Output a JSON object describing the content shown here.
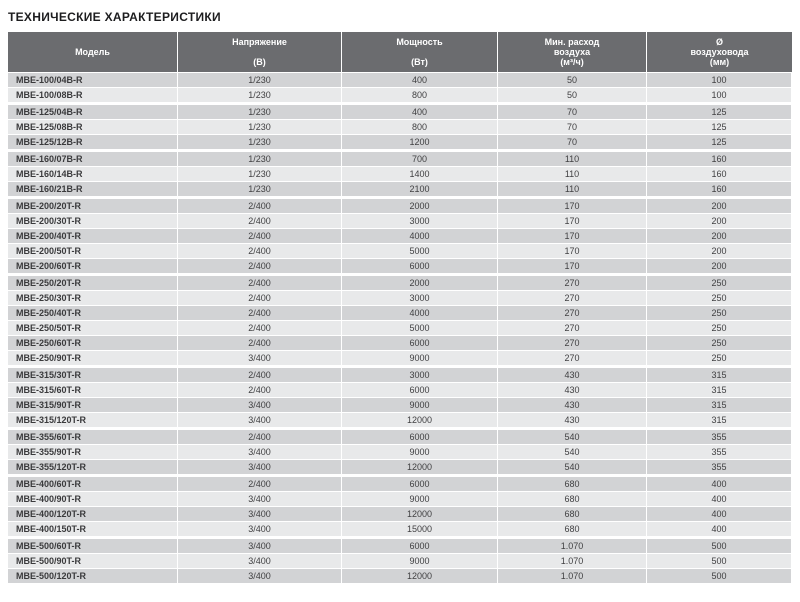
{
  "page_title": "ТЕХНИЧЕСКИЕ ХАРАКТЕРИСТИКИ",
  "colors": {
    "header_bg": "#6b6c6f",
    "header_text": "#ffffff",
    "row_dark": "#d2d3d5",
    "row_light": "#e8e9ea",
    "text": "#404042"
  },
  "table": {
    "columns": [
      {
        "title": "Модель",
        "unit": ""
      },
      {
        "title": "Напряжение",
        "unit": "(В)"
      },
      {
        "title": "Мощность",
        "unit": "(Вт)"
      },
      {
        "title": "Мин. расход\nвоздуха",
        "unit": "(м³/ч)"
      },
      {
        "title": "Ø\nвоздуховода",
        "unit": "(мм)"
      }
    ],
    "groups": [
      {
        "rows": [
          [
            "MBE-100/04B-R",
            "1/230",
            "400",
            "50",
            "100"
          ],
          [
            "MBE-100/08B-R",
            "1/230",
            "800",
            "50",
            "100"
          ]
        ]
      },
      {
        "rows": [
          [
            "MBE-125/04B-R",
            "1/230",
            "400",
            "70",
            "125"
          ],
          [
            "MBE-125/08B-R",
            "1/230",
            "800",
            "70",
            "125"
          ],
          [
            "MBE-125/12B-R",
            "1/230",
            "1200",
            "70",
            "125"
          ]
        ]
      },
      {
        "rows": [
          [
            "MBE-160/07B-R",
            "1/230",
            "700",
            "110",
            "160"
          ],
          [
            "MBE-160/14B-R",
            "1/230",
            "1400",
            "110",
            "160"
          ],
          [
            "MBE-160/21B-R",
            "1/230",
            "2100",
            "110",
            "160"
          ]
        ]
      },
      {
        "rows": [
          [
            "MBE-200/20T-R",
            "2/400",
            "2000",
            "170",
            "200"
          ],
          [
            "MBE-200/30T-R",
            "2/400",
            "3000",
            "170",
            "200"
          ],
          [
            "MBE-200/40T-R",
            "2/400",
            "4000",
            "170",
            "200"
          ],
          [
            "MBE-200/50T-R",
            "2/400",
            "5000",
            "170",
            "200"
          ],
          [
            "MBE-200/60T-R",
            "2/400",
            "6000",
            "170",
            "200"
          ]
        ]
      },
      {
        "rows": [
          [
            "MBE-250/20T-R",
            "2/400",
            "2000",
            "270",
            "250"
          ],
          [
            "MBE-250/30T-R",
            "2/400",
            "3000",
            "270",
            "250"
          ],
          [
            "MBE-250/40T-R",
            "2/400",
            "4000",
            "270",
            "250"
          ],
          [
            "MBE-250/50T-R",
            "2/400",
            "5000",
            "270",
            "250"
          ],
          [
            "MBE-250/60T-R",
            "2/400",
            "6000",
            "270",
            "250"
          ],
          [
            "MBE-250/90T-R",
            "3/400",
            "9000",
            "270",
            "250"
          ]
        ]
      },
      {
        "rows": [
          [
            "MBE-315/30T-R",
            "2/400",
            "3000",
            "430",
            "315"
          ],
          [
            "MBE-315/60T-R",
            "2/400",
            "6000",
            "430",
            "315"
          ],
          [
            "MBE-315/90T-R",
            "3/400",
            "9000",
            "430",
            "315"
          ],
          [
            "MBE-315/120T-R",
            "3/400",
            "12000",
            "430",
            "315"
          ]
        ]
      },
      {
        "rows": [
          [
            "MBE-355/60T-R",
            "2/400",
            "6000",
            "540",
            "355"
          ],
          [
            "MBE-355/90T-R",
            "3/400",
            "9000",
            "540",
            "355"
          ],
          [
            "MBE-355/120T-R",
            "3/400",
            "12000",
            "540",
            "355"
          ]
        ]
      },
      {
        "rows": [
          [
            "MBE-400/60T-R",
            "2/400",
            "6000",
            "680",
            "400"
          ],
          [
            "MBE-400/90T-R",
            "3/400",
            "9000",
            "680",
            "400"
          ],
          [
            "MBE-400/120T-R",
            "3/400",
            "12000",
            "680",
            "400"
          ],
          [
            "MBE-400/150T-R",
            "3/400",
            "15000",
            "680",
            "400"
          ]
        ]
      },
      {
        "rows": [
          [
            "MBE-500/60T-R",
            "3/400",
            "6000",
            "1.070",
            "500"
          ],
          [
            "MBE-500/90T-R",
            "3/400",
            "9000",
            "1.070",
            "500"
          ],
          [
            "MBE-500/120T-R",
            "3/400",
            "12000",
            "1.070",
            "500"
          ]
        ]
      }
    ]
  }
}
